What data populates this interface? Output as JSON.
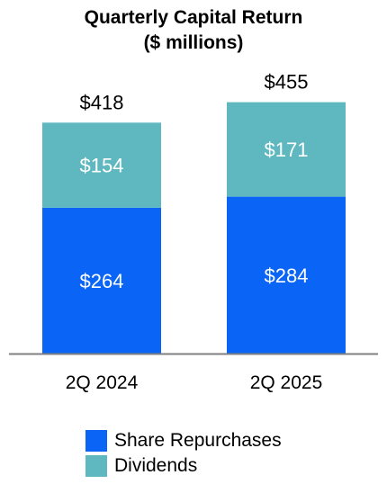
{
  "chart_data": {
    "type": "bar",
    "stacked": true,
    "title": "Quarterly Capital Return",
    "subtitle": "($ millions)",
    "categories": [
      "2Q 2024",
      "2Q 2025"
    ],
    "series": [
      {
        "name": "Share Repurchases",
        "values": [
          264,
          284
        ],
        "labels": [
          "$264",
          "$284"
        ],
        "color": "#0a64f5"
      },
      {
        "name": "Dividends",
        "values": [
          154,
          171
        ],
        "labels": [
          "$154",
          "$171"
        ],
        "color": "#5fb8bf"
      }
    ],
    "totals": [
      418,
      455
    ],
    "total_labels": [
      "$418",
      "$455"
    ],
    "ylim": [
      0,
      640
    ],
    "grid": false,
    "legend_position": "bottom"
  }
}
